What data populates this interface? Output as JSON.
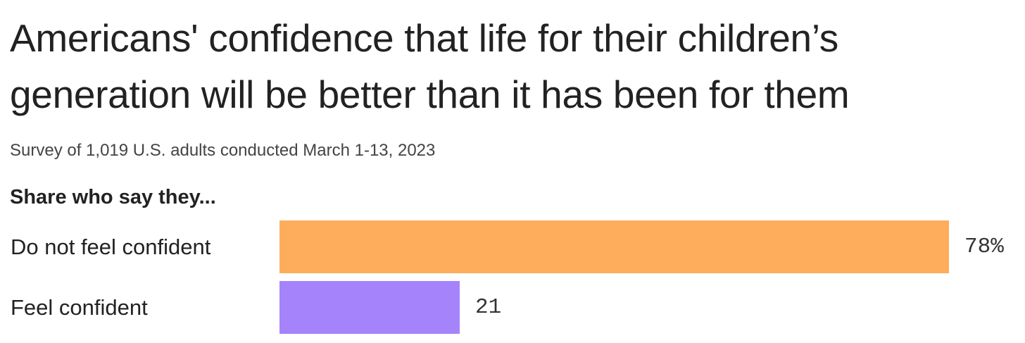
{
  "chart_data": {
    "type": "bar",
    "orientation": "horizontal",
    "title": "Americans' confidence that life for their children’s generation will be better than it has been for them",
    "subtitle": "Survey of 1,019 U.S. adults conducted March 1-13, 2023",
    "category_heading": "Share who say they...",
    "categories": [
      "Do not feel confident",
      "Feel confident"
    ],
    "values": [
      78,
      21
    ],
    "value_labels": [
      "78%",
      "21"
    ],
    "colors": [
      "#FDAD5C",
      "#A584FB"
    ],
    "xlim": [
      0,
      78
    ],
    "grid": false,
    "legend": "none"
  }
}
